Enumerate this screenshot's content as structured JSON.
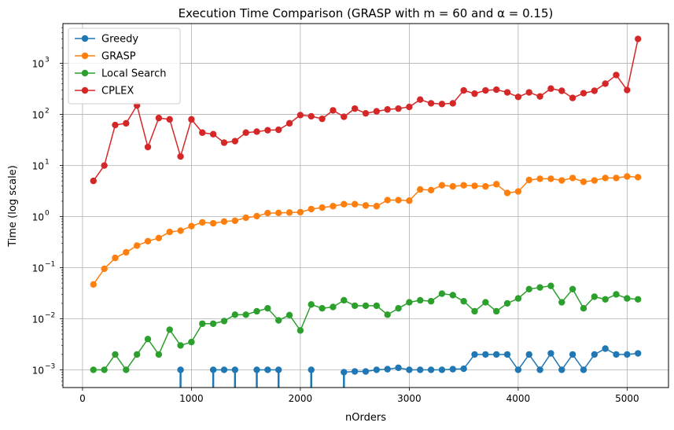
{
  "chart_data": {
    "type": "line",
    "title": "Execution Time Comparison (GRASP with m = 60 and α = 0.15)",
    "xlabel": "nOrders",
    "ylabel": "Time (log scale)",
    "yscale": "log",
    "xlim": [
      -180,
      5380
    ],
    "ylim": [
      0.00045,
      6000
    ],
    "xticks": [
      0,
      1000,
      2000,
      3000,
      4000,
      5000
    ],
    "yticks": [
      {
        "value": 0.001,
        "base": "10",
        "exp": "−3"
      },
      {
        "value": 0.01,
        "base": "10",
        "exp": "−2"
      },
      {
        "value": 0.1,
        "base": "10",
        "exp": "−1"
      },
      {
        "value": 1,
        "base": "10",
        "exp": "0"
      },
      {
        "value": 10,
        "base": "10",
        "exp": "1"
      },
      {
        "value": 100,
        "base": "10",
        "exp": "2"
      },
      {
        "value": 1000,
        "base": "10",
        "exp": "3"
      }
    ],
    "grid": true,
    "legend_position": "upper-left",
    "x": [
      100,
      200,
      300,
      400,
      500,
      600,
      700,
      800,
      900,
      1000,
      1100,
      1200,
      1300,
      1400,
      1500,
      1600,
      1700,
      1800,
      1900,
      2000,
      2100,
      2200,
      2300,
      2400,
      2500,
      2600,
      2700,
      2800,
      2900,
      3000,
      3100,
      3200,
      3300,
      3400,
      3500,
      3600,
      3700,
      3800,
      3900,
      4000,
      4100,
      4200,
      4300,
      4400,
      4500,
      4600,
      4700,
      4800,
      4900,
      5000,
      5100
    ],
    "series": [
      {
        "name": "Greedy",
        "color": "#1f77b4",
        "values": [
          0,
          0,
          0,
          0,
          0,
          0,
          0,
          0,
          0.001,
          0,
          0,
          0.001,
          0.001,
          0.001,
          0,
          0.001,
          0.001,
          0.001,
          0,
          0,
          0.001,
          0,
          0,
          0.0009,
          0.00093,
          0.00093,
          0.001,
          0.00103,
          0.0011,
          0.001,
          0.001,
          0.001,
          0.001,
          0.00103,
          0.00105,
          0.002,
          0.002,
          0.002,
          0.002,
          0.001,
          0.002,
          0.001,
          0.0021,
          0.001,
          0.002,
          0.001,
          0.002,
          0.0026,
          0.002,
          0.002,
          0.0021
        ]
      },
      {
        "name": "GRASP",
        "color": "#ff7f0e",
        "values": [
          0.047,
          0.095,
          0.155,
          0.2,
          0.27,
          0.33,
          0.38,
          0.5,
          0.53,
          0.65,
          0.77,
          0.74,
          0.8,
          0.83,
          0.95,
          1.02,
          1.17,
          1.18,
          1.2,
          1.22,
          1.4,
          1.5,
          1.6,
          1.75,
          1.75,
          1.65,
          1.6,
          2.1,
          2.1,
          2.05,
          3.4,
          3.3,
          4.1,
          3.9,
          4.1,
          4.0,
          3.9,
          4.3,
          2.9,
          3.1,
          5.2,
          5.5,
          5.5,
          5.1,
          5.7,
          4.8,
          5.1,
          5.7,
          5.7,
          6.1,
          5.9
        ]
      },
      {
        "name": "Local Search",
        "color": "#2ca02c",
        "values": [
          0.001,
          0.001,
          0.002,
          0.001,
          0.002,
          0.004,
          0.002,
          0.0061,
          0.003,
          0.0035,
          0.008,
          0.008,
          0.009,
          0.012,
          0.012,
          0.014,
          0.016,
          0.0093,
          0.0118,
          0.0059,
          0.019,
          0.016,
          0.017,
          0.023,
          0.018,
          0.018,
          0.018,
          0.012,
          0.016,
          0.021,
          0.023,
          0.022,
          0.031,
          0.029,
          0.022,
          0.014,
          0.021,
          0.014,
          0.02,
          0.025,
          0.038,
          0.041,
          0.044,
          0.021,
          0.038,
          0.016,
          0.027,
          0.024,
          0.03,
          0.025,
          0.024
        ]
      },
      {
        "name": "CPLEX",
        "color": "#d62728",
        "values": [
          5,
          10,
          62,
          67,
          150,
          23,
          85,
          80,
          15,
          80,
          44,
          41,
          28,
          30,
          44,
          46,
          49,
          50,
          67,
          97,
          92,
          82,
          120,
          90,
          130,
          105,
          115,
          125,
          130,
          140,
          195,
          165,
          160,
          165,
          295,
          255,
          295,
          305,
          270,
          220,
          270,
          225,
          320,
          290,
          210,
          260,
          290,
          400,
          590,
          300,
          3000
        ]
      }
    ]
  }
}
